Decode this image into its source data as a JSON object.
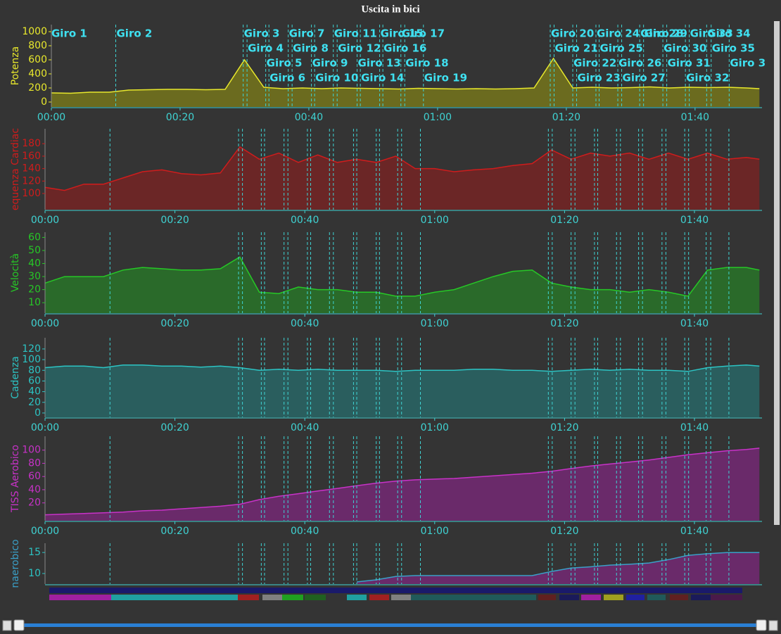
{
  "chart_data": [
    {
      "type": "area",
      "title": "Uscita in bici",
      "y_label": "Potenza",
      "color": "#e8e82c",
      "fill": "#6b6b1f",
      "xlim": [
        0,
        110.4
      ],
      "xticks": [
        {
          "value": 0,
          "label": "00:00"
        },
        {
          "value": 20,
          "label": "00:20"
        },
        {
          "value": 40,
          "label": "00:40"
        },
        {
          "value": 60,
          "label": "01:00"
        },
        {
          "value": 80,
          "label": "01:20"
        },
        {
          "value": 100,
          "label": "01:40"
        }
      ],
      "ylim": [
        -70,
        1100
      ],
      "yticks": [
        0,
        200,
        400,
        600,
        800,
        1000
      ],
      "x": [
        0,
        3,
        6,
        9,
        12,
        15,
        18,
        21,
        24,
        27,
        30,
        33,
        36,
        39,
        42,
        45,
        48,
        51,
        54,
        57,
        60,
        63,
        66,
        69,
        72,
        75,
        78,
        81,
        84,
        87,
        90,
        93,
        96,
        99,
        102,
        105,
        108,
        110
      ],
      "values": [
        130,
        125,
        140,
        140,
        170,
        175,
        180,
        180,
        175,
        180,
        600,
        210,
        190,
        200,
        190,
        200,
        195,
        190,
        185,
        195,
        190,
        185,
        190,
        185,
        190,
        200,
        620,
        200,
        210,
        200,
        205,
        215,
        200,
        210,
        205,
        210,
        200,
        190
      ],
      "laps": [
        {
          "label": "Giro 1",
          "time": 0
        },
        {
          "label": "Giro 2",
          "time": 10
        },
        {
          "label": "Giro 3",
          "time": 29.8
        },
        {
          "label": "Giro 4",
          "time": 30.4
        },
        {
          "label": "Giro 5",
          "time": 33.3
        },
        {
          "label": "Giro 6",
          "time": 33.8
        },
        {
          "label": "Giro 7",
          "time": 36.8
        },
        {
          "label": "Giro 8",
          "time": 37.4
        },
        {
          "label": "Giro 9",
          "time": 40.4
        },
        {
          "label": "Giro 10",
          "time": 40.9
        },
        {
          "label": "Giro 11",
          "time": 43.8
        },
        {
          "label": "Giro 12",
          "time": 44.4
        },
        {
          "label": "Giro 13",
          "time": 47.5
        },
        {
          "label": "Giro 14",
          "time": 48
        },
        {
          "label": "Giro 15",
          "time": 51
        },
        {
          "label": "Giro 16",
          "time": 51.5
        },
        {
          "label": "Giro 17",
          "time": 54.3
        },
        {
          "label": "Giro 18",
          "time": 54.9
        },
        {
          "label": "Giro 19",
          "time": 57.8
        },
        {
          "label": "Giro 20",
          "time": 77.5
        },
        {
          "label": "Giro 21",
          "time": 78.1
        },
        {
          "label": "Giro 22",
          "time": 81
        },
        {
          "label": "Giro 23",
          "time": 81.6
        },
        {
          "label": "Giro 24",
          "time": 84.6
        },
        {
          "label": "Giro 25",
          "time": 85.1
        },
        {
          "label": "Giro 26",
          "time": 88
        },
        {
          "label": "Giro 27",
          "time": 88.6
        },
        {
          "label": "Giro 28",
          "time": 91.4
        },
        {
          "label": "Giro 29",
          "time": 92
        },
        {
          "label": "Giro 30",
          "time": 95
        },
        {
          "label": "Giro 31",
          "time": 95.6
        },
        {
          "label": "Giro 32",
          "time": 98.5
        },
        {
          "label": "Giro 33",
          "time": 99.1
        },
        {
          "label": "Giro 34",
          "time": 101.8
        },
        {
          "label": "Giro 35",
          "time": 102.5
        },
        {
          "label": "Giro 3",
          "time": 105.3
        }
      ]
    },
    {
      "type": "area",
      "y_label": "equenza Cardiac",
      "color": "#d01c1c",
      "fill": "#6b2626",
      "xlim": [
        0,
        110.4
      ],
      "xticks": [
        {
          "value": 0,
          "label": "00:00"
        },
        {
          "value": 20,
          "label": "00:20"
        },
        {
          "value": 40,
          "label": "00:40"
        },
        {
          "value": 60,
          "label": "01:00"
        },
        {
          "value": 80,
          "label": "01:20"
        },
        {
          "value": 100,
          "label": "01:40"
        }
      ],
      "ylim": [
        74,
        204
      ],
      "yticks": [
        100,
        120,
        140,
        160,
        180
      ],
      "x": [
        0,
        3,
        6,
        9,
        12,
        15,
        18,
        21,
        24,
        27,
        30,
        33,
        36,
        39,
        42,
        45,
        48,
        51,
        54,
        57,
        60,
        63,
        66,
        69,
        72,
        75,
        78,
        81,
        84,
        87,
        90,
        93,
        96,
        99,
        102,
        105,
        108,
        110
      ],
      "values": [
        110,
        105,
        115,
        115,
        125,
        135,
        138,
        132,
        130,
        133,
        175,
        155,
        165,
        150,
        162,
        150,
        155,
        150,
        160,
        140,
        140,
        135,
        138,
        140,
        145,
        148,
        170,
        155,
        165,
        160,
        165,
        155,
        165,
        155,
        165,
        155,
        158,
        155
      ]
    },
    {
      "type": "area",
      "y_label": "Velocità",
      "color": "#26c826",
      "fill": "#2a6a2a",
      "xlim": [
        0,
        110.4
      ],
      "xticks": [
        {
          "value": 0,
          "label": "00:00"
        },
        {
          "value": 20,
          "label": "00:20"
        },
        {
          "value": 40,
          "label": "00:40"
        },
        {
          "value": 60,
          "label": "01:00"
        },
        {
          "value": 80,
          "label": "01:20"
        },
        {
          "value": 100,
          "label": "01:40"
        }
      ],
      "ylim": [
        2,
        64
      ],
      "yticks": [
        10,
        20,
        30,
        40,
        50,
        60
      ],
      "x": [
        0,
        3,
        6,
        9,
        12,
        15,
        18,
        21,
        24,
        27,
        30,
        33,
        36,
        39,
        42,
        45,
        48,
        51,
        54,
        57,
        60,
        63,
        66,
        69,
        72,
        75,
        78,
        81,
        84,
        87,
        90,
        93,
        96,
        99,
        102,
        105,
        108,
        110
      ],
      "values": [
        25,
        30,
        30,
        30,
        35,
        37,
        36,
        35,
        35,
        36,
        45,
        18,
        17,
        22,
        20,
        20,
        18,
        18,
        15,
        15,
        18,
        20,
        25,
        30,
        34,
        35,
        25,
        22,
        20,
        20,
        18,
        20,
        18,
        15,
        35,
        37,
        37,
        35
      ]
    },
    {
      "type": "area",
      "y_label": "Cadenza",
      "color": "#2cc4c4",
      "fill": "#2a5e5e",
      "xlim": [
        0,
        110.4
      ],
      "xticks": [
        {
          "value": 0,
          "label": "00:00"
        },
        {
          "value": 20,
          "label": "00:20"
        },
        {
          "value": 40,
          "label": "00:40"
        },
        {
          "value": 60,
          "label": "01:00"
        },
        {
          "value": 80,
          "label": "01:20"
        },
        {
          "value": 100,
          "label": "01:40"
        }
      ],
      "ylim": [
        -8,
        141
      ],
      "yticks": [
        0,
        20,
        40,
        60,
        80,
        100,
        120
      ],
      "x": [
        0,
        3,
        6,
        9,
        12,
        15,
        18,
        21,
        24,
        27,
        30,
        33,
        36,
        39,
        42,
        45,
        48,
        51,
        54,
        57,
        60,
        63,
        66,
        69,
        72,
        75,
        78,
        81,
        84,
        87,
        90,
        93,
        96,
        99,
        102,
        105,
        108,
        110
      ],
      "values": [
        85,
        88,
        88,
        85,
        90,
        90,
        88,
        88,
        86,
        88,
        85,
        80,
        82,
        80,
        82,
        80,
        80,
        80,
        78,
        80,
        80,
        80,
        82,
        82,
        80,
        80,
        78,
        80,
        82,
        80,
        82,
        80,
        80,
        78,
        85,
        88,
        90,
        88
      ]
    },
    {
      "type": "area",
      "y_label": "TISS Aerobico",
      "color": "#c832c8",
      "fill": "#6a2a6a",
      "xlim": [
        0,
        110.4
      ],
      "xticks": [
        {
          "value": 0,
          "label": "00:00"
        },
        {
          "value": 20,
          "label": "00:20"
        },
        {
          "value": 40,
          "label": "00:40"
        },
        {
          "value": 60,
          "label": "01:00"
        },
        {
          "value": 80,
          "label": "01:20"
        },
        {
          "value": 100,
          "label": "01:40"
        }
      ],
      "ylim": [
        -7,
        121
      ],
      "yticks": [
        20,
        40,
        60,
        80,
        100
      ],
      "x": [
        0,
        3,
        6,
        9,
        12,
        15,
        18,
        21,
        24,
        27,
        30,
        33,
        36,
        39,
        42,
        45,
        48,
        51,
        54,
        57,
        60,
        63,
        66,
        69,
        72,
        75,
        78,
        81,
        84,
        87,
        90,
        93,
        96,
        99,
        102,
        105,
        108,
        110
      ],
      "values": [
        2,
        3,
        4,
        5,
        6,
        8,
        9,
        11,
        13,
        15,
        18,
        25,
        30,
        34,
        38,
        42,
        46,
        50,
        53,
        55,
        56,
        57,
        59,
        61,
        63,
        65,
        68,
        72,
        76,
        79,
        82,
        85,
        89,
        93,
        96,
        99,
        101,
        103
      ]
    },
    {
      "type": "area",
      "y_label": "naerobico",
      "color": "#3aa0c8",
      "fill": "#6a2a6a",
      "xlim": [
        0,
        110.4
      ],
      "ylim": [
        7.5,
        17.2
      ],
      "yticks": [
        10,
        15
      ],
      "x": [
        0,
        3,
        6,
        9,
        12,
        15,
        18,
        21,
        24,
        27,
        30,
        33,
        36,
        39,
        42,
        45,
        48,
        51,
        54,
        57,
        60,
        63,
        66,
        69,
        72,
        75,
        78,
        81,
        84,
        87,
        90,
        93,
        96,
        99,
        102,
        105,
        108,
        110
      ],
      "values": [
        null,
        null,
        null,
        null,
        null,
        null,
        null,
        null,
        null,
        null,
        null,
        null,
        null,
        null,
        null,
        null,
        8,
        8.5,
        9.3,
        9.5,
        9.5,
        9.5,
        9.5,
        9.5,
        9.5,
        9.5,
        10.5,
        11.3,
        11.6,
        12,
        12.2,
        12.5,
        13.3,
        14.3,
        14.7,
        15,
        15,
        15
      ]
    }
  ]
}
